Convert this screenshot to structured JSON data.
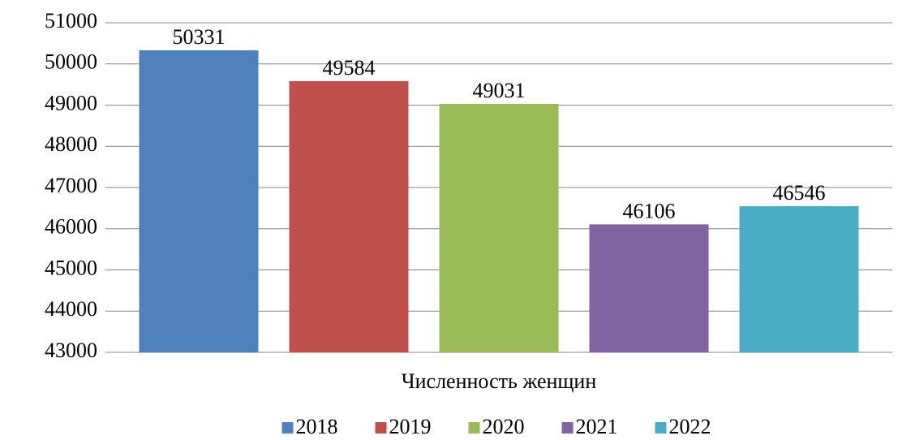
{
  "chart_data": {
    "type": "bar",
    "categories": [
      "Численность женщин"
    ],
    "series": [
      {
        "name": "2018",
        "color": "#4f81bd",
        "values": [
          50331
        ]
      },
      {
        "name": "2019",
        "color": "#c0504d",
        "values": [
          49584
        ]
      },
      {
        "name": "2020",
        "color": "#9bbb59",
        "values": [
          49031
        ]
      },
      {
        "name": "2021",
        "color": "#8064a2",
        "values": [
          46106
        ]
      },
      {
        "name": "2022",
        "color": "#4bacc6",
        "values": [
          46546
        ]
      }
    ],
    "ylim": [
      43000,
      51000
    ],
    "yticks": [
      43000,
      44000,
      45000,
      46000,
      47000,
      48000,
      49000,
      50000,
      51000
    ],
    "grid": true,
    "legend": "bottom",
    "data_labels": true
  }
}
